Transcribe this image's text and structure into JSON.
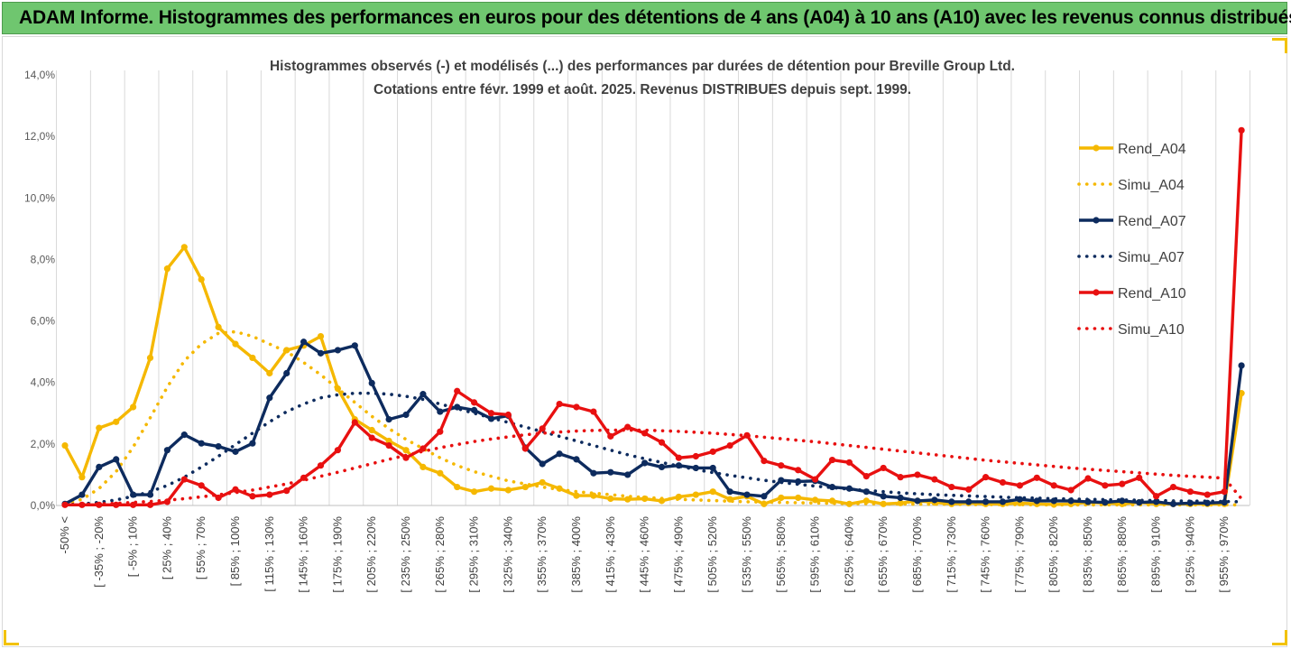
{
  "banner": {
    "title": "ADAM Informe. Histogrammes des performances en euros pour des détentions de 4 ans (A04) à 10 ans (A10) avec les revenus connus distribués"
  },
  "chart_data": {
    "type": "line",
    "title": "Histogrammes observés (-) et modélisés (...) des performances par durées de détention pour Breville Group Ltd.",
    "subtitle": "Cotations entre févr. 1999 et août. 2025. Revenus DISTRIBUES depuis sept. 1999.",
    "ylim": [
      0,
      14
    ],
    "yticks": [
      "0,0%",
      "2,0%",
      "4,0%",
      "6,0%",
      "8,0%",
      "10,0%",
      "12,0%",
      "14,0%"
    ],
    "ytick_values": [
      0,
      2,
      4,
      6,
      8,
      10,
      12,
      14
    ],
    "xtick_labels": [
      "-50% <",
      "[ -35% ; -20%",
      "[ -5% ; 10%",
      "[ 25% ; 40%",
      "[ 55% ; 70%",
      "[ 85% ; 100%",
      "[ 115% ; 130%",
      "[ 145% ; 160%",
      "[ 175% ; 190%",
      "[ 205% ; 220%",
      "[ 235% ; 250%",
      "[ 265% ; 280%",
      "[ 295% ; 310%",
      "[ 325% ; 340%",
      "[ 355% ; 370%",
      "[ 385% ; 400%",
      "[ 415% ; 430%",
      "[ 445% ; 460%",
      "[ 475% ; 490%",
      "[ 505% ; 520%",
      "[ 535% ; 550%",
      "[ 565% ; 580%",
      "[ 595% ; 610%",
      "[ 625% ; 640%",
      "[ 655% ; 670%",
      "[ 685% ; 700%",
      "[ 715% ; 730%",
      "[ 745% ; 760%",
      "[ 775% ; 790%",
      "[ 805% ; 820%",
      "[ 835% ; 850%",
      "[ 865% ; 880%",
      "[ 895% ; 910%",
      "[ 925% ; 940%",
      "[ 955% ; 970%"
    ],
    "n_points": 70,
    "grid": "vertical",
    "legend_position": "right",
    "series": [
      {
        "name": "Rend_A04",
        "color": "#f5b800",
        "style": "solid",
        "markers": true,
        "values": [
          1.95,
          0.92,
          2.52,
          2.72,
          3.2,
          4.8,
          7.7,
          8.4,
          7.35,
          5.8,
          5.25,
          4.8,
          4.3,
          5.05,
          5.2,
          5.5,
          3.8,
          2.8,
          2.45,
          2.1,
          1.8,
          1.25,
          1.05,
          0.6,
          0.45,
          0.55,
          0.5,
          0.6,
          0.75,
          0.55,
          0.32,
          0.32,
          0.22,
          0.2,
          0.22,
          0.15,
          0.28,
          0.35,
          0.45,
          0.2,
          0.3,
          0.05,
          0.25,
          0.25,
          0.18,
          0.15,
          0.05,
          0.15,
          0.05,
          0.08,
          0.15,
          0.1,
          0.05,
          0.08,
          0.05,
          0.05,
          0.08,
          0.05,
          0.03,
          0.05,
          0.1,
          0.08,
          0.05,
          0.1,
          0.05,
          0.05,
          0.05,
          0.05,
          0.05,
          3.65
        ]
      },
      {
        "name": "Simu_A04",
        "color": "#f5b800",
        "style": "dotted",
        "markers": false,
        "values": [
          0.05,
          0.2,
          0.55,
          1.1,
          1.9,
          2.85,
          3.85,
          4.7,
          5.25,
          5.6,
          5.65,
          5.5,
          5.25,
          5.0,
          4.65,
          4.25,
          3.8,
          3.35,
          2.9,
          2.5,
          2.15,
          1.85,
          1.55,
          1.3,
          1.1,
          0.95,
          0.8,
          0.7,
          0.6,
          0.52,
          0.45,
          0.4,
          0.35,
          0.3,
          0.26,
          0.23,
          0.2,
          0.18,
          0.16,
          0.14,
          0.12,
          0.11,
          0.1,
          0.09,
          0.08,
          0.07,
          0.06,
          0.06,
          0.05,
          0.05,
          0.04,
          0.04,
          0.04,
          0.03,
          0.03,
          0.03,
          0.03,
          0.02,
          0.02,
          0.02,
          0.02,
          0.02,
          0.02,
          0.02,
          0.02,
          0.02,
          0.02,
          0.02,
          0.02,
          0.02
        ]
      },
      {
        "name": "Rend_A07",
        "color": "#0d2b5e",
        "style": "solid",
        "markers": true,
        "values": [
          0.05,
          0.35,
          1.25,
          1.5,
          0.35,
          0.35,
          1.8,
          2.3,
          2.02,
          1.92,
          1.75,
          2.02,
          3.5,
          4.3,
          5.32,
          4.95,
          5.05,
          5.2,
          3.98,
          2.8,
          2.95,
          3.62,
          3.05,
          3.2,
          3.1,
          2.82,
          2.92,
          1.88,
          1.35,
          1.68,
          1.5,
          1.05,
          1.08,
          1.0,
          1.38,
          1.25,
          1.3,
          1.22,
          1.22,
          0.45,
          0.35,
          0.3,
          0.82,
          0.78,
          0.8,
          0.6,
          0.55,
          0.45,
          0.3,
          0.25,
          0.15,
          0.18,
          0.12,
          0.12,
          0.12,
          0.12,
          0.2,
          0.15,
          0.15,
          0.15,
          0.12,
          0.1,
          0.15,
          0.1,
          0.12,
          0.05,
          0.08,
          0.08,
          0.1,
          4.55
        ]
      },
      {
        "name": "Simu_A07",
        "color": "#0d2b5e",
        "style": "dotted",
        "markers": false,
        "values": [
          0.02,
          0.05,
          0.1,
          0.18,
          0.3,
          0.45,
          0.65,
          0.92,
          1.25,
          1.6,
          1.98,
          2.35,
          2.72,
          3.05,
          3.3,
          3.5,
          3.6,
          3.65,
          3.65,
          3.62,
          3.55,
          3.45,
          3.3,
          3.15,
          3.0,
          2.85,
          2.7,
          2.55,
          2.4,
          2.25,
          2.1,
          1.95,
          1.8,
          1.65,
          1.52,
          1.4,
          1.28,
          1.17,
          1.07,
          0.98,
          0.9,
          0.82,
          0.75,
          0.69,
          0.63,
          0.58,
          0.53,
          0.49,
          0.45,
          0.41,
          0.38,
          0.35,
          0.33,
          0.31,
          0.29,
          0.27,
          0.25,
          0.24,
          0.22,
          0.21,
          0.2,
          0.19,
          0.18,
          0.17,
          0.16,
          0.15,
          0.14,
          0.14,
          0.13,
          0.12
        ]
      },
      {
        "name": "Rend_A10",
        "color": "#e81010",
        "style": "solid",
        "markers": true,
        "values": [
          0.02,
          0.02,
          0.02,
          0.02,
          0.02,
          0.02,
          0.12,
          0.85,
          0.65,
          0.25,
          0.52,
          0.3,
          0.35,
          0.48,
          0.9,
          1.3,
          1.8,
          2.7,
          2.2,
          1.95,
          1.55,
          1.85,
          2.4,
          3.72,
          3.35,
          3.0,
          2.95,
          1.85,
          2.5,
          3.3,
          3.2,
          3.05,
          2.25,
          2.55,
          2.35,
          2.05,
          1.55,
          1.6,
          1.75,
          1.95,
          2.28,
          1.45,
          1.3,
          1.15,
          0.85,
          1.48,
          1.4,
          0.95,
          1.22,
          0.92,
          1.0,
          0.85,
          0.6,
          0.52,
          0.92,
          0.75,
          0.65,
          0.9,
          0.65,
          0.5,
          0.88,
          0.65,
          0.7,
          0.9,
          0.3,
          0.6,
          0.45,
          0.35,
          0.45,
          12.2
        ]
      },
      {
        "name": "Simu_A10",
        "color": "#e81010",
        "style": "dotted",
        "markers": false,
        "values": [
          0.02,
          0.03,
          0.05,
          0.07,
          0.1,
          0.13,
          0.17,
          0.22,
          0.28,
          0.35,
          0.42,
          0.5,
          0.6,
          0.7,
          0.82,
          0.95,
          1.08,
          1.22,
          1.36,
          1.5,
          1.63,
          1.76,
          1.88,
          1.98,
          2.08,
          2.16,
          2.23,
          2.3,
          2.35,
          2.39,
          2.42,
          2.44,
          2.45,
          2.45,
          2.45,
          2.43,
          2.41,
          2.38,
          2.35,
          2.31,
          2.27,
          2.22,
          2.17,
          2.12,
          2.07,
          2.01,
          1.95,
          1.89,
          1.83,
          1.77,
          1.71,
          1.65,
          1.59,
          1.53,
          1.47,
          1.42,
          1.37,
          1.32,
          1.27,
          1.22,
          1.18,
          1.14,
          1.1,
          1.06,
          1.02,
          0.98,
          0.95,
          0.92,
          0.89,
          0.22
        ]
      }
    ]
  }
}
